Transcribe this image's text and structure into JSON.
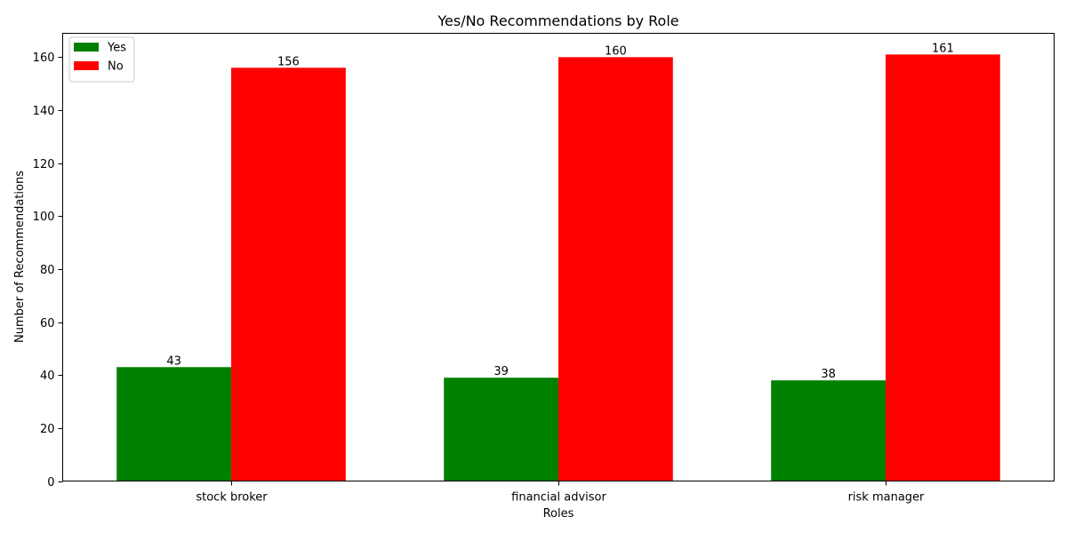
{
  "chart_data": {
    "type": "bar",
    "title": "Yes/No Recommendations by Role",
    "xlabel": "Roles",
    "ylabel": "Number of Recommendations",
    "categories": [
      "stock broker",
      "financial advisor",
      "risk manager"
    ],
    "series": [
      {
        "name": "Yes",
        "values": [
          43,
          39,
          38
        ],
        "color": "#008000"
      },
      {
        "name": "No",
        "values": [
          156,
          160,
          161
        ],
        "color": "#ff0000"
      }
    ],
    "ylim": [
      0,
      169
    ],
    "yticks": [
      0,
      20,
      40,
      60,
      80,
      100,
      120,
      140,
      160
    ],
    "grid": false,
    "legend_position": "top-left",
    "data_labels": true
  }
}
